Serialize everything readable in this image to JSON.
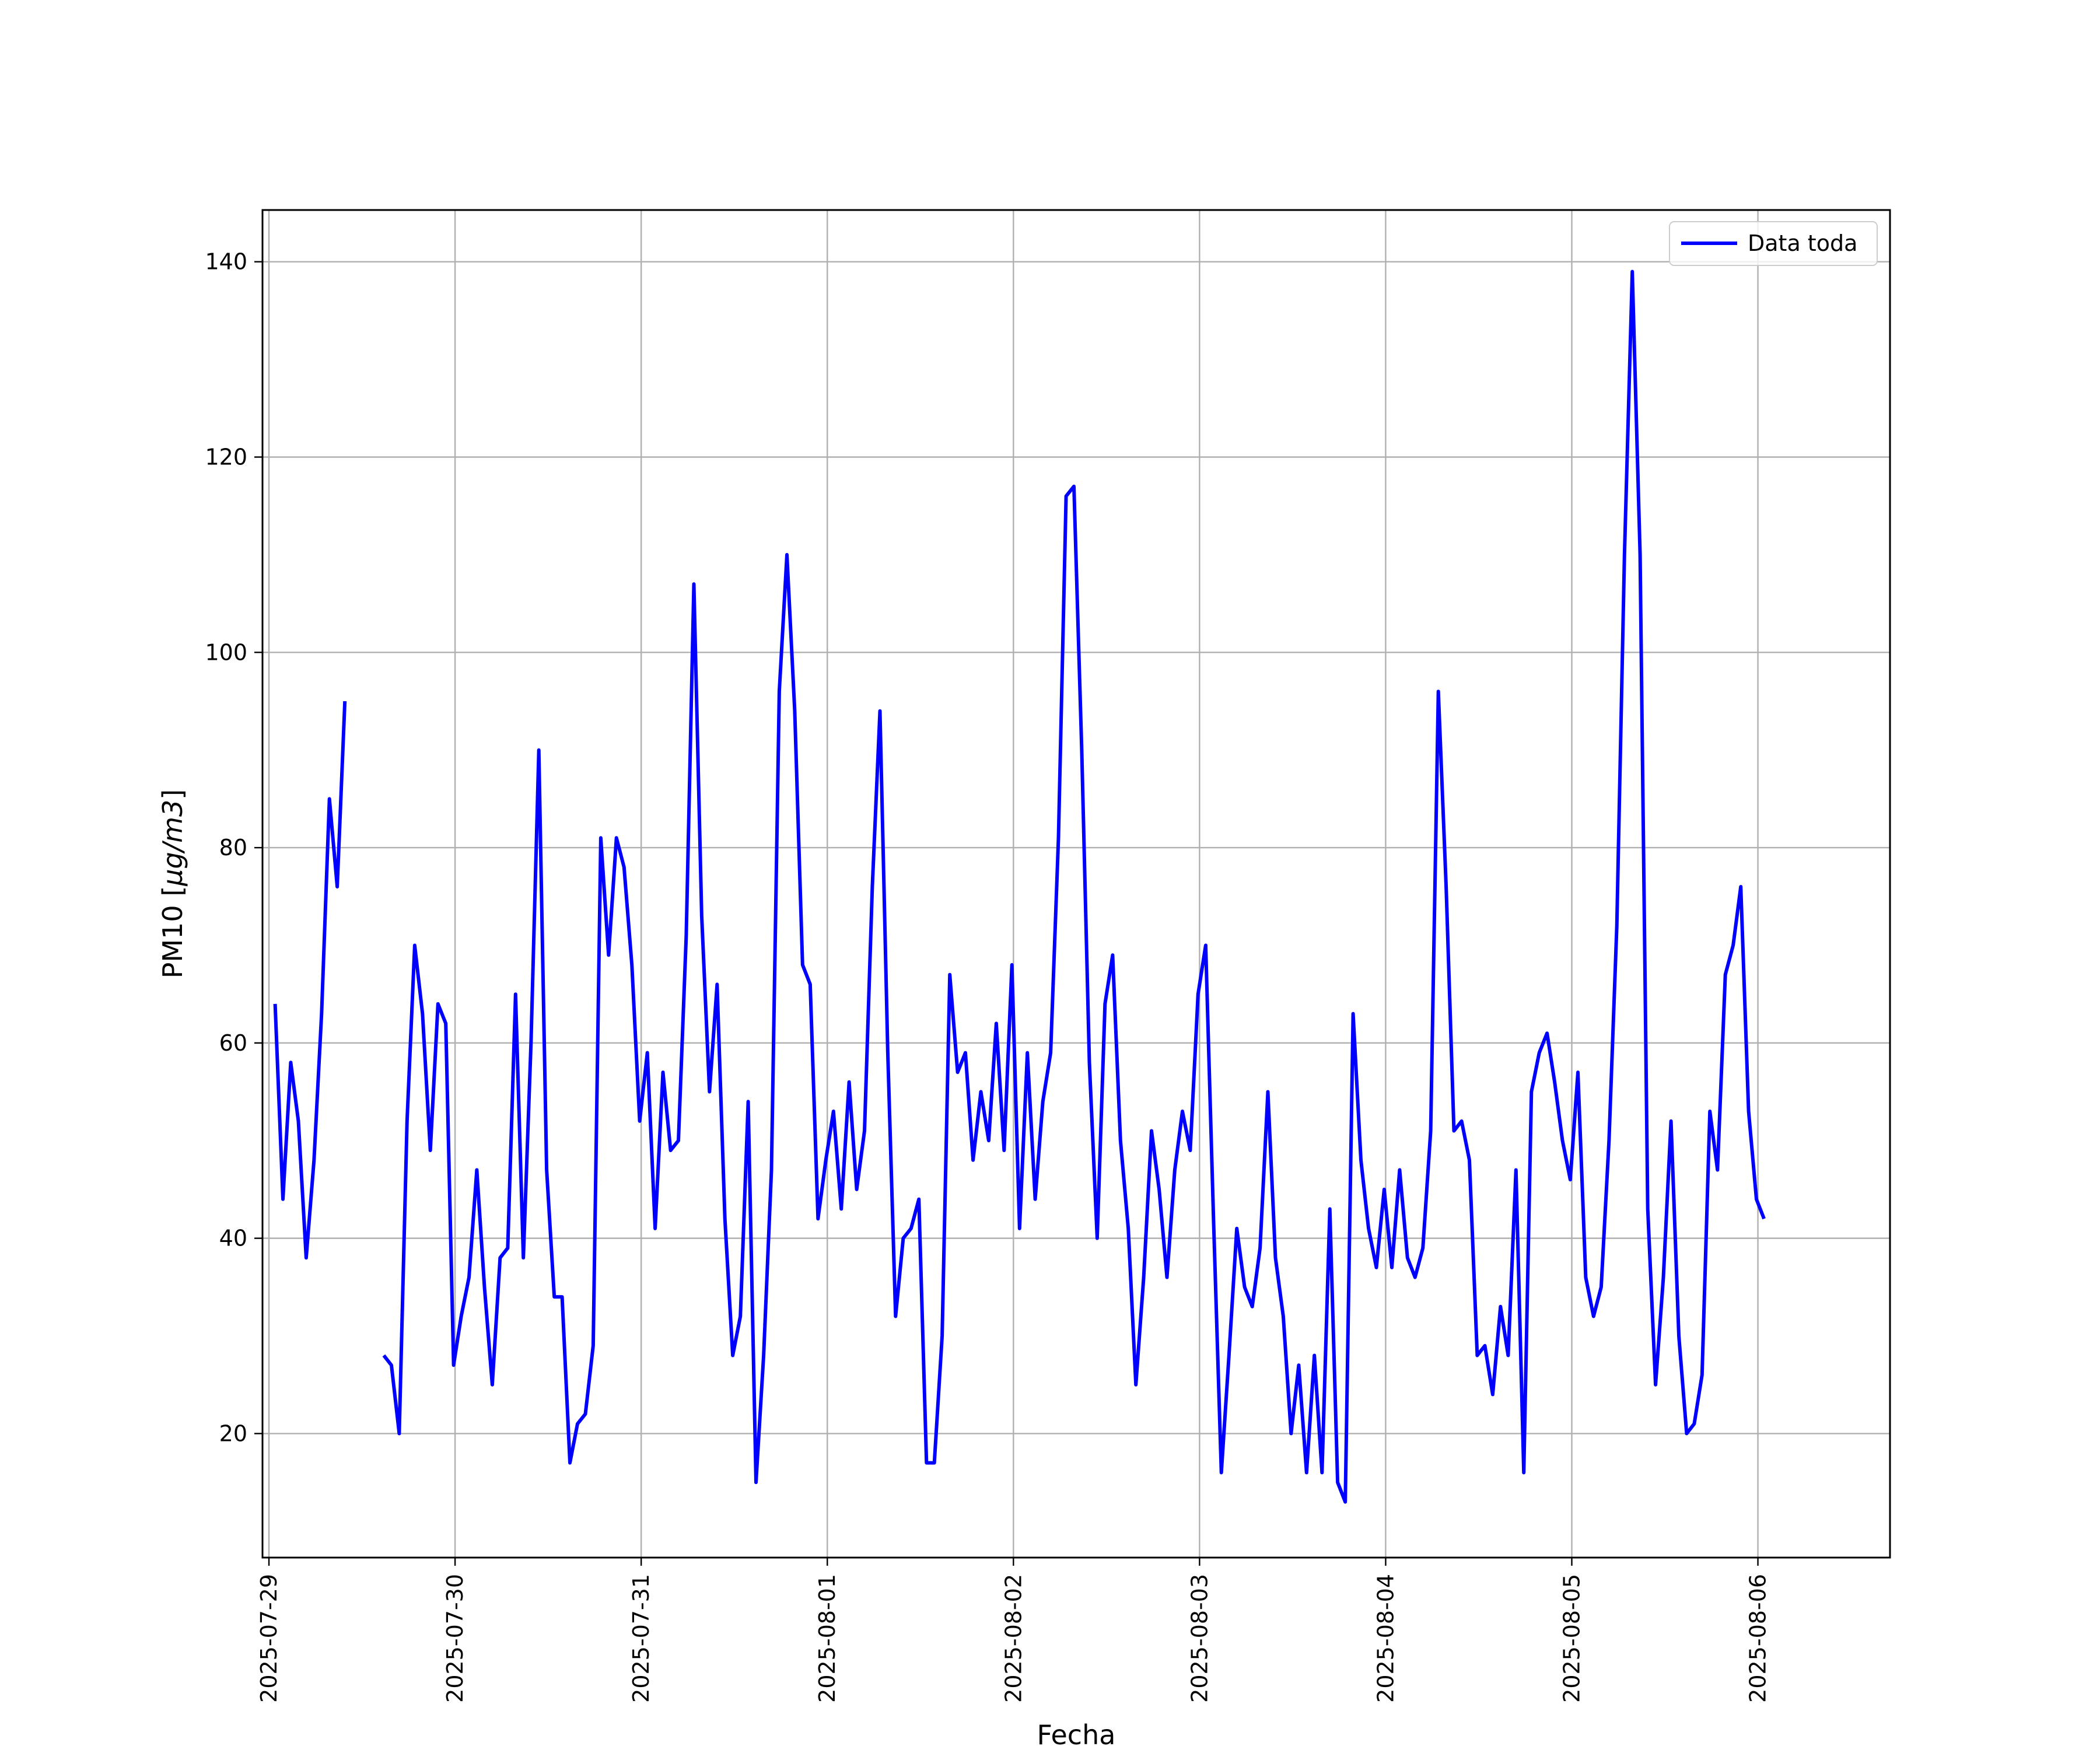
{
  "chart_data": {
    "type": "line",
    "title": "",
    "xlabel": "Fecha",
    "ylabel": "PM10 [",
    "ylabel_math": "μg/m3",
    "ylabel_end": "]",
    "x_ticks": [
      "2025-07-29",
      "2025-07-30",
      "2025-07-31",
      "2025-08-01",
      "2025-08-02",
      "2025-08-03",
      "2025-08-04",
      "2025-08-05",
      "2025-08-06"
    ],
    "y_ticks": [
      20,
      40,
      60,
      80,
      100,
      120,
      140
    ],
    "xlim": [
      -0.0346,
      8.7097
    ],
    "ylim": [
      7.3,
      145.3
    ],
    "grid": true,
    "legend_position": "upper right",
    "series": [
      {
        "name": "Data toda",
        "color": "#0000ff",
        "points": [
          [
            0.033,
            64
          ],
          [
            0.075,
            44
          ],
          [
            0.117,
            58
          ],
          [
            0.158,
            52
          ],
          [
            0.2,
            38
          ],
          [
            0.242,
            48
          ],
          [
            0.283,
            63
          ],
          [
            0.325,
            85
          ],
          [
            0.367,
            76
          ],
          [
            0.408,
            95
          ],
          null,
          [
            0.617,
            28
          ],
          [
            0.658,
            27
          ],
          [
            0.7,
            20
          ],
          [
            0.742,
            52
          ],
          [
            0.783,
            70
          ],
          [
            0.825,
            63
          ],
          [
            0.867,
            49
          ],
          [
            0.908,
            64
          ],
          [
            0.95,
            62
          ],
          [
            0.992,
            27
          ],
          [
            1.033,
            32
          ],
          [
            1.075,
            36
          ],
          [
            1.117,
            47
          ],
          [
            1.158,
            35
          ],
          [
            1.2,
            25
          ],
          [
            1.242,
            38
          ],
          [
            1.283,
            39
          ],
          [
            1.325,
            65
          ],
          [
            1.367,
            38
          ],
          [
            1.408,
            60
          ],
          [
            1.45,
            90
          ],
          [
            1.492,
            47
          ],
          [
            1.533,
            34
          ],
          [
            1.575,
            34
          ],
          [
            1.617,
            17
          ],
          [
            1.658,
            21
          ],
          [
            1.7,
            22
          ],
          [
            1.742,
            29
          ],
          [
            1.783,
            81
          ],
          [
            1.825,
            69
          ],
          [
            1.867,
            81
          ],
          [
            1.908,
            78
          ],
          [
            1.95,
            68
          ],
          [
            1.992,
            52
          ],
          [
            2.033,
            59
          ],
          [
            2.075,
            41
          ],
          [
            2.117,
            57
          ],
          [
            2.158,
            49
          ],
          [
            2.2,
            50
          ],
          [
            2.242,
            71
          ],
          [
            2.283,
            107
          ],
          [
            2.325,
            73
          ],
          [
            2.367,
            55
          ],
          [
            2.408,
            66
          ],
          [
            2.45,
            42
          ],
          [
            2.492,
            28
          ],
          [
            2.533,
            32
          ],
          [
            2.575,
            54
          ],
          [
            2.617,
            15
          ],
          [
            2.658,
            28
          ],
          [
            2.7,
            47
          ],
          [
            2.742,
            96
          ],
          [
            2.783,
            110
          ],
          [
            2.825,
            94
          ],
          [
            2.867,
            68
          ],
          [
            2.908,
            66
          ],
          [
            2.95,
            42
          ],
          [
            2.992,
            48
          ],
          [
            3.033,
            53
          ],
          [
            3.075,
            43
          ],
          [
            3.117,
            56
          ],
          [
            3.158,
            45
          ],
          [
            3.2,
            51
          ],
          [
            3.242,
            76
          ],
          [
            3.283,
            94
          ],
          [
            3.325,
            59
          ],
          [
            3.367,
            32
          ],
          [
            3.408,
            40
          ],
          [
            3.45,
            41
          ],
          [
            3.492,
            44
          ],
          [
            3.533,
            17
          ],
          [
            3.575,
            17
          ],
          [
            3.617,
            30
          ],
          [
            3.658,
            67
          ],
          [
            3.7,
            57
          ],
          [
            3.742,
            59
          ],
          [
            3.783,
            48
          ],
          [
            3.825,
            55
          ],
          [
            3.867,
            50
          ],
          [
            3.908,
            62
          ],
          [
            3.95,
            49
          ],
          [
            3.992,
            68
          ],
          [
            4.033,
            41
          ],
          [
            4.075,
            59
          ],
          [
            4.117,
            44
          ],
          [
            4.158,
            54
          ],
          [
            4.2,
            59
          ],
          [
            4.242,
            81
          ],
          [
            4.283,
            116
          ],
          [
            4.325,
            117
          ],
          [
            4.367,
            90
          ],
          [
            4.408,
            58
          ],
          [
            4.45,
            40
          ],
          [
            4.492,
            64
          ],
          [
            4.533,
            69
          ],
          [
            4.575,
            50
          ],
          [
            4.617,
            41
          ],
          [
            4.658,
            25
          ],
          [
            4.7,
            36
          ],
          [
            4.742,
            51
          ],
          [
            4.783,
            45
          ],
          [
            4.825,
            36
          ],
          [
            4.867,
            47
          ],
          [
            4.908,
            53
          ],
          [
            4.95,
            49
          ],
          [
            4.992,
            65
          ],
          [
            5.033,
            70
          ],
          [
            5.075,
            42
          ],
          [
            5.117,
            16
          ],
          [
            5.158,
            28
          ],
          [
            5.2,
            41
          ],
          [
            5.242,
            35
          ],
          [
            5.283,
            33
          ],
          [
            5.325,
            39
          ],
          [
            5.367,
            55
          ],
          [
            5.408,
            38
          ],
          [
            5.45,
            32
          ],
          [
            5.492,
            20
          ],
          [
            5.533,
            27
          ],
          [
            5.575,
            16
          ],
          [
            5.617,
            28
          ],
          [
            5.658,
            16
          ],
          [
            5.7,
            43
          ],
          [
            5.742,
            15
          ],
          [
            5.783,
            13
          ],
          [
            5.825,
            63
          ],
          [
            5.867,
            48
          ],
          [
            5.908,
            41
          ],
          [
            5.95,
            37
          ],
          [
            5.992,
            45
          ],
          [
            6.033,
            37
          ],
          [
            6.075,
            47
          ],
          [
            6.117,
            38
          ],
          [
            6.158,
            36
          ],
          [
            6.2,
            39
          ],
          [
            6.242,
            51
          ],
          [
            6.283,
            96
          ],
          [
            6.325,
            76
          ],
          [
            6.367,
            51
          ],
          [
            6.408,
            52
          ],
          [
            6.45,
            48
          ],
          [
            6.492,
            28
          ],
          [
            6.533,
            29
          ],
          [
            6.575,
            24
          ],
          [
            6.617,
            33
          ],
          [
            6.658,
            28
          ],
          [
            6.7,
            47
          ],
          [
            6.742,
            16
          ],
          [
            6.783,
            55
          ],
          [
            6.825,
            59
          ],
          [
            6.867,
            61
          ],
          [
            6.908,
            56
          ],
          [
            6.95,
            50
          ],
          [
            6.992,
            46
          ],
          [
            7.033,
            57
          ],
          [
            7.075,
            36
          ],
          [
            7.117,
            32
          ],
          [
            7.158,
            35
          ],
          [
            7.2,
            50
          ],
          [
            7.242,
            72
          ],
          [
            7.283,
            110
          ],
          [
            7.325,
            139
          ],
          [
            7.367,
            110
          ],
          [
            7.408,
            43
          ],
          [
            7.45,
            25
          ],
          [
            7.492,
            36
          ],
          [
            7.533,
            52
          ],
          [
            7.575,
            30
          ],
          [
            7.617,
            20
          ],
          [
            7.658,
            21
          ],
          [
            7.7,
            26
          ],
          [
            7.742,
            53
          ],
          [
            7.783,
            47
          ],
          [
            7.825,
            67
          ],
          [
            7.867,
            70
          ],
          [
            7.908,
            76
          ],
          [
            7.95,
            53
          ],
          [
            7.992,
            44
          ],
          [
            8.033,
            42
          ]
        ]
      }
    ]
  }
}
